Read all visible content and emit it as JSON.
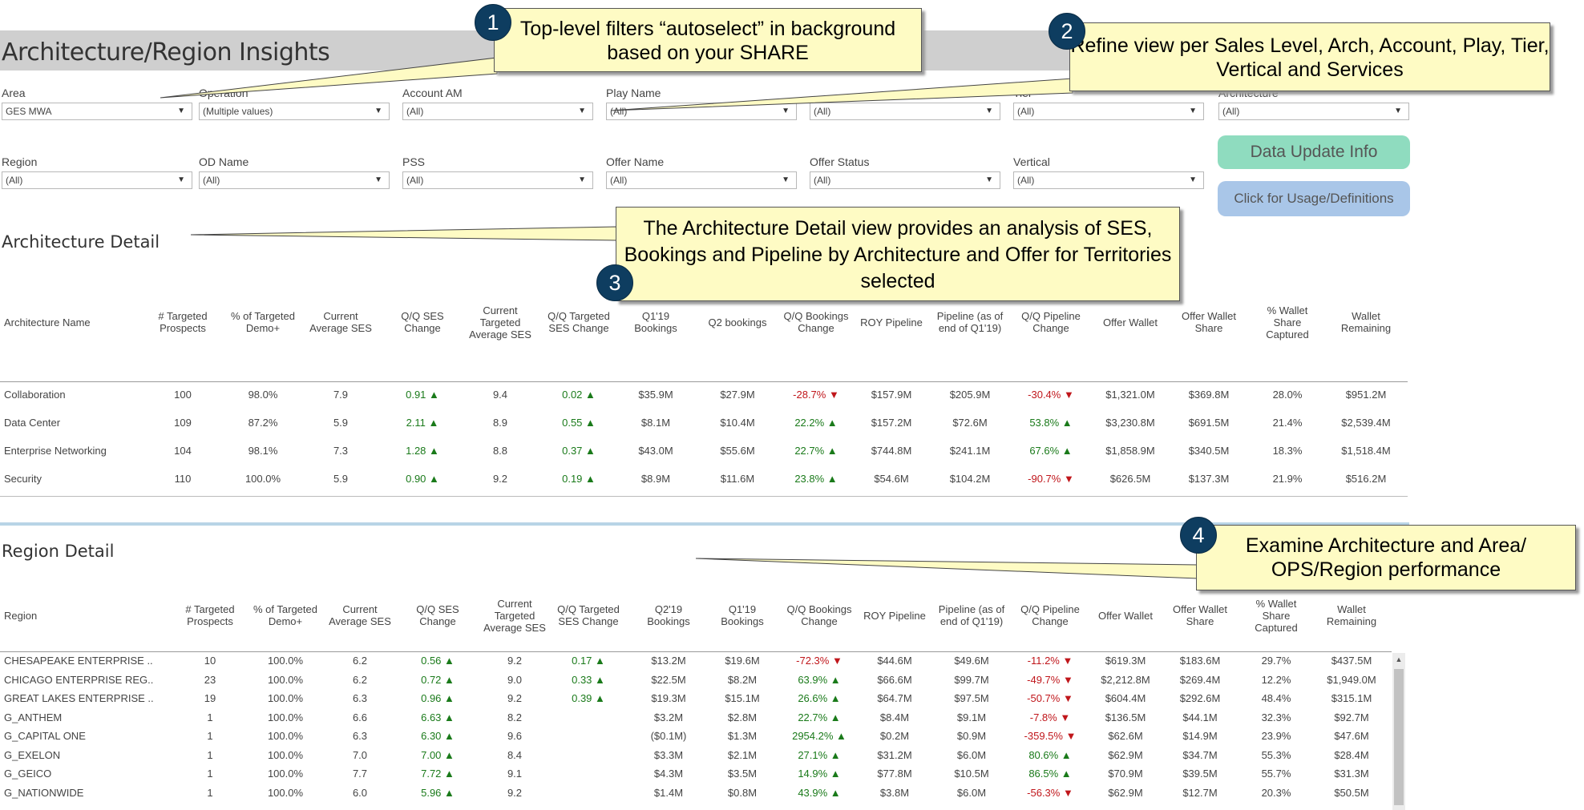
{
  "page_title": "Architecture/Region Insights",
  "filters": [
    {
      "label": "Area",
      "value": "GES MWA"
    },
    {
      "label": "Operation",
      "value": "(Multiple values)"
    },
    {
      "label": "Account AM",
      "value": "(All)"
    },
    {
      "label": "Play Name",
      "value": "(All)"
    },
    {
      "label": "",
      "value": "(All)"
    },
    {
      "label": "Tier",
      "value": "(All)"
    },
    {
      "label": "Architecture",
      "value": "(All)"
    },
    {
      "label": "Region",
      "value": "(All)"
    },
    {
      "label": "OD Name",
      "value": "(All)"
    },
    {
      "label": "PSS",
      "value": "(All)"
    },
    {
      "label": "Offer Name",
      "value": "(All)"
    },
    {
      "label": "Offer Status",
      "value": "(All)"
    },
    {
      "label": "Vertical",
      "value": "(All)"
    }
  ],
  "buttons": {
    "data_update": "Data Update Info",
    "usage": "Click for Usage/Definitions"
  },
  "colors": {
    "positive": "#1a7a1a",
    "negative": "#c0161b",
    "callout_bg": "#fefbc4",
    "badge": "#0e3d60",
    "data_update_btn": "#8fdcbf",
    "usage_btn": "#a9c6e8"
  },
  "architecture_detail": {
    "title": "Architecture Detail",
    "headers": [
      "Architecture Name",
      "# Targeted Prospects",
      "% of Targeted Demo+",
      "Current Average SES",
      "Q/Q SES Change",
      "Current Targeted Average SES",
      "Q/Q Targeted SES Change",
      "Q1'19 Bookings",
      "Q2 bookings",
      "Q/Q Bookings Change",
      "ROY Pipeline",
      "Pipeline (as of end of Q1'19)",
      "Q/Q Pipeline Change",
      "Offer Wallet",
      "Offer Wallet Share",
      "% Wallet Share Captured",
      "Wallet Remaining"
    ],
    "rows": [
      [
        "Collaboration",
        "100",
        "98.0%",
        "7.9",
        "0.91 ▲",
        "9.4",
        "0.02 ▲",
        "$35.9M",
        "$27.9M",
        "-28.7% ▼",
        "$157.9M",
        "$205.9M",
        "-30.4% ▼",
        "$1,321.0M",
        "$369.8M",
        "28.0%",
        "$951.2M"
      ],
      [
        "Data Center",
        "109",
        "87.2%",
        "5.9",
        "2.11 ▲",
        "8.9",
        "0.55 ▲",
        "$8.1M",
        "$10.4M",
        "22.2% ▲",
        "$157.2M",
        "$72.6M",
        "53.8% ▲",
        "$3,230.8M",
        "$691.5M",
        "21.4%",
        "$2,539.4M"
      ],
      [
        "Enterprise Networking",
        "104",
        "98.1%",
        "7.3",
        "1.28 ▲",
        "8.8",
        "0.37 ▲",
        "$43.0M",
        "$55.6M",
        "22.7% ▲",
        "$744.8M",
        "$241.1M",
        "67.6% ▲",
        "$1,858.9M",
        "$340.5M",
        "18.3%",
        "$1,518.4M"
      ],
      [
        "Security",
        "110",
        "100.0%",
        "5.9",
        "0.90 ▲",
        "9.2",
        "0.19 ▲",
        "$8.9M",
        "$11.6M",
        "23.8% ▲",
        "$54.6M",
        "$104.2M",
        "-90.7% ▼",
        "$626.5M",
        "$137.3M",
        "21.9%",
        "$516.2M"
      ]
    ]
  },
  "region_detail": {
    "title": "Region Detail",
    "headers": [
      "Region",
      "# Targeted Prospects",
      "% of Targeted Demo+",
      "Current Average SES",
      "Q/Q SES Change",
      "Current Targeted Average SES",
      "Q/Q Targeted SES Change",
      "Q2'19 Bookings",
      "Q1'19 Bookings",
      "Q/Q Bookings Change",
      "ROY Pipeline",
      "Pipeline (as of end of Q1'19)",
      "Q/Q Pipeline Change",
      "Offer Wallet",
      "Offer Wallet Share",
      "% Wallet Share Captured",
      "Wallet Remaining"
    ],
    "rows": [
      [
        "CHESAPEAKE ENTERPRISE ..",
        "10",
        "100.0%",
        "6.2",
        "0.56 ▲",
        "9.2",
        "0.17 ▲",
        "$13.2M",
        "$19.6M",
        "-72.3% ▼",
        "$44.6M",
        "$49.6M",
        "-11.2% ▼",
        "$619.3M",
        "$183.6M",
        "29.7%",
        "$437.5M"
      ],
      [
        "CHICAGO ENTERPRISE REG..",
        "23",
        "100.0%",
        "6.2",
        "0.72 ▲",
        "9.0",
        "0.33 ▲",
        "$22.5M",
        "$8.2M",
        "63.9% ▲",
        "$66.6M",
        "$99.7M",
        "-49.7% ▼",
        "$2,212.8M",
        "$269.4M",
        "12.2%",
        "$1,949.0M"
      ],
      [
        "GREAT LAKES ENTERPRISE ..",
        "19",
        "100.0%",
        "6.3",
        "0.96 ▲",
        "9.2",
        "0.39 ▲",
        "$19.3M",
        "$15.1M",
        "26.6% ▲",
        "$64.7M",
        "$97.5M",
        "-50.7% ▼",
        "$604.4M",
        "$292.6M",
        "48.4%",
        "$315.1M"
      ],
      [
        "G_ANTHEM",
        "1",
        "100.0%",
        "6.6",
        "6.63 ▲",
        "8.2",
        "",
        "$3.2M",
        "$2.8M",
        "22.7% ▲",
        "$8.4M",
        "$9.1M",
        "-7.8% ▼",
        "$136.5M",
        "$44.1M",
        "32.3%",
        "$92.7M"
      ],
      [
        "G_CAPITAL ONE",
        "1",
        "100.0%",
        "6.3",
        "6.30 ▲",
        "9.6",
        "",
        "($0.1M)",
        "$1.3M",
        "2954.2% ▲",
        "$0.2M",
        "$0.9M",
        "-359.5% ▼",
        "$62.6M",
        "$14.9M",
        "23.9%",
        "$47.6M"
      ],
      [
        "G_EXELON",
        "1",
        "100.0%",
        "7.0",
        "7.00 ▲",
        "8.4",
        "",
        "$3.3M",
        "$2.1M",
        "27.1% ▲",
        "$31.2M",
        "$6.0M",
        "80.6% ▲",
        "$62.9M",
        "$34.7M",
        "55.3%",
        "$28.4M"
      ],
      [
        "G_GEICO",
        "1",
        "100.0%",
        "7.7",
        "7.72 ▲",
        "9.1",
        "",
        "$4.3M",
        "$3.5M",
        "14.9% ▲",
        "$77.8M",
        "$10.5M",
        "86.5% ▲",
        "$70.9M",
        "$39.5M",
        "55.7%",
        "$31.3M"
      ],
      [
        "G_NATIONWIDE",
        "1",
        "100.0%",
        "6.0",
        "5.96 ▲",
        "9.2",
        "",
        "$1.4M",
        "$0.8M",
        "43.9% ▲",
        "$3.8M",
        "$6.0M",
        "-56.3% ▼",
        "$62.9M",
        "$12.7M",
        "20.3%",
        "$50.5M"
      ]
    ]
  },
  "callouts": [
    {
      "badge": "1",
      "text": "Top-level filters “autoselect” in background based on your SHARE"
    },
    {
      "badge": "2",
      "text": "Refine view per Sales Level, Arch, Account, Play, Tier, Vertical and Services"
    },
    {
      "badge": "3",
      "text": "The Architecture Detail view provides an analysis of SES, Bookings and Pipeline by Architecture and Offer for Territories selected"
    },
    {
      "badge": "4",
      "text": "Examine Architecture and Area/ OPS/Region performance"
    }
  ]
}
